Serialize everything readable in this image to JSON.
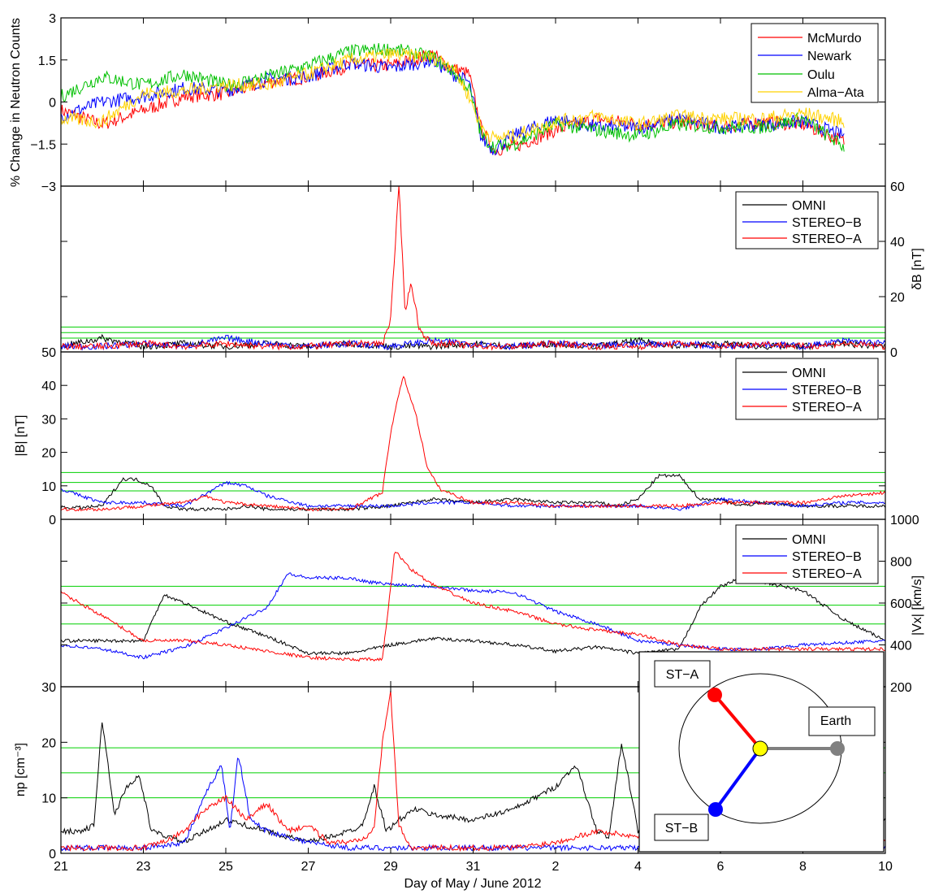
{
  "figure": {
    "xlabel": "Day of May / June 2012",
    "x_tick_labels": [
      "21",
      "23",
      "25",
      "27",
      "29",
      "31",
      "2",
      "4",
      "6",
      "8",
      "10"
    ],
    "xlim": [
      21,
      41
    ]
  },
  "chart_data": [
    {
      "type": "line",
      "ylabel": "% Change in Neutron Counts",
      "ylim": [
        -3,
        3
      ],
      "y_tick_labels": [
        "3",
        "1.5",
        "0",
        "−1.5",
        "−3"
      ],
      "legend_position": "top-right",
      "series": [
        {
          "name": "McMurdo",
          "color": "#ff0000",
          "x": [
            21,
            22,
            23,
            24,
            25,
            26,
            27,
            28,
            29,
            30,
            30.5,
            30.9,
            31.2,
            31.5,
            32,
            33,
            34,
            35,
            36,
            37,
            38,
            39,
            40
          ],
          "y": [
            -0.3,
            -0.8,
            -0.3,
            0.2,
            0.3,
            0.7,
            0.9,
            1.3,
            1.3,
            1.7,
            1.2,
            1.0,
            -1.0,
            -1.7,
            -1.6,
            -1.0,
            -0.6,
            -0.8,
            -0.7,
            -0.9,
            -0.7,
            -0.8,
            -1.4
          ]
        },
        {
          "name": "Newark",
          "color": "#0000ff",
          "x": [
            21,
            22,
            23,
            24,
            25,
            26,
            27,
            28,
            29,
            30,
            30.5,
            30.9,
            31.2,
            31.5,
            32,
            33,
            34,
            35,
            36,
            37,
            38,
            39,
            40
          ],
          "y": [
            -0.5,
            0.0,
            0.2,
            0.5,
            0.4,
            0.8,
            0.9,
            1.4,
            1.2,
            1.5,
            1.0,
            0.7,
            -1.3,
            -1.7,
            -1.2,
            -0.6,
            -0.9,
            -0.9,
            -0.6,
            -0.9,
            -0.8,
            -0.7,
            -1.2
          ]
        },
        {
          "name": "Oulu",
          "color": "#00c000",
          "x": [
            21,
            22,
            23,
            24,
            25,
            26,
            27,
            28,
            29,
            30,
            30.5,
            30.9,
            31.2,
            31.5,
            32,
            33,
            34,
            35,
            36,
            37,
            38,
            39,
            40
          ],
          "y": [
            0.2,
            0.9,
            0.6,
            1.0,
            0.6,
            0.9,
            1.3,
            1.8,
            1.9,
            1.6,
            1.1,
            0.5,
            -1.2,
            -1.6,
            -1.5,
            -0.8,
            -1.0,
            -1.2,
            -0.8,
            -0.9,
            -0.9,
            -0.6,
            -1.6
          ]
        },
        {
          "name": "Alma−Ata",
          "color": "#ffd200",
          "x": [
            21,
            22,
            23,
            24,
            25,
            26,
            27,
            28,
            29,
            30,
            30.5,
            30.9,
            31.2,
            31.5,
            32,
            33,
            34,
            35,
            36,
            37,
            38,
            39,
            40
          ],
          "y": [
            -0.6,
            -0.7,
            0.3,
            0.4,
            0.6,
            0.6,
            1.0,
            1.5,
            1.7,
            1.6,
            1.3,
            0.2,
            -0.9,
            -1.3,
            -1.2,
            -0.7,
            -0.5,
            -0.8,
            -0.5,
            -0.6,
            -0.6,
            -0.4,
            -0.7
          ]
        }
      ]
    },
    {
      "type": "line",
      "ylabel": "δB [nT]",
      "ylim": [
        0,
        60
      ],
      "y_tick_labels": [
        "60",
        "40",
        "20",
        "0"
      ],
      "y_axis_side": "right",
      "threshold_lines": [
        5,
        7,
        9
      ],
      "legend_position": "top-right",
      "series": [
        {
          "name": "OMNI",
          "color": "#000000",
          "x": [
            21,
            22,
            23,
            24,
            25,
            26,
            27,
            28,
            29,
            30,
            31,
            32,
            33,
            34,
            35,
            36,
            37,
            38,
            39,
            40,
            41
          ],
          "y": [
            2,
            5,
            2,
            3,
            2,
            3,
            2,
            3,
            2,
            2,
            3,
            2,
            3,
            2,
            4,
            2,
            3,
            2,
            2,
            3,
            2
          ]
        },
        {
          "name": "STEREO−B",
          "color": "#0000ff",
          "x": [
            21,
            22,
            23,
            24,
            25,
            26,
            27,
            28,
            29,
            30,
            31,
            32,
            33,
            34,
            35,
            36,
            37,
            38,
            39,
            40,
            41
          ],
          "y": [
            2,
            2,
            3,
            2,
            5,
            3,
            2,
            3,
            2,
            4,
            3,
            2,
            3,
            2,
            3,
            3,
            2,
            3,
            2,
            4,
            3
          ]
        },
        {
          "name": "STEREO−A",
          "color": "#ff0000",
          "x": [
            21,
            22,
            23,
            24,
            25,
            26,
            27,
            28,
            28.8,
            29.0,
            29.2,
            29.35,
            29.5,
            29.7,
            30,
            30.5,
            31,
            32,
            33,
            34,
            35,
            36,
            37,
            38,
            39,
            40,
            41
          ],
          "y": [
            2,
            2,
            3,
            2,
            3,
            2,
            2,
            3,
            3,
            12,
            60,
            15,
            25,
            8,
            3,
            3,
            2,
            2,
            3,
            2,
            2,
            3,
            2,
            3,
            2,
            3,
            2
          ]
        }
      ]
    },
    {
      "type": "line",
      "ylabel": "|B| [nT]",
      "ylim": [
        0,
        50
      ],
      "y_tick_labels": [
        "50",
        "40",
        "30",
        "20",
        "10",
        "0"
      ],
      "threshold_lines": [
        8.5,
        11,
        14
      ],
      "legend_position": "top-right",
      "series": [
        {
          "name": "OMNI",
          "color": "#000000",
          "x": [
            21,
            21.5,
            22,
            22.5,
            22.8,
            23.2,
            23.5,
            24,
            25,
            25.5,
            26,
            27,
            28,
            29,
            30,
            31,
            32,
            33,
            34,
            34.5,
            35,
            35.5,
            36,
            36.5,
            37,
            37.5,
            38,
            39,
            40,
            41
          ],
          "y": [
            3.5,
            3.5,
            4,
            12,
            12,
            10,
            4,
            3,
            3,
            4,
            3,
            3,
            3,
            4,
            6,
            5,
            6,
            5,
            5,
            4,
            6,
            13,
            13,
            6,
            6,
            4,
            5,
            4,
            4,
            4
          ]
        },
        {
          "name": "STEREO−B",
          "color": "#0000ff",
          "x": [
            21,
            22,
            23,
            24,
            25,
            25.5,
            26,
            27,
            28,
            29,
            30,
            31,
            32,
            33,
            34,
            35,
            36,
            37,
            38,
            39,
            40,
            41
          ],
          "y": [
            9,
            5,
            5,
            4,
            11,
            10,
            7,
            4,
            4,
            4,
            5,
            5,
            4,
            4,
            4,
            4,
            3,
            6,
            5,
            4,
            5,
            5
          ]
        },
        {
          "name": "STEREO−A",
          "color": "#ff0000",
          "x": [
            21,
            22,
            23,
            24,
            24.5,
            25,
            26,
            27,
            28,
            28.8,
            29.0,
            29.3,
            29.6,
            29.9,
            30.2,
            30.6,
            31,
            32,
            33,
            34,
            35,
            36,
            37,
            38,
            39,
            40,
            41
          ],
          "y": [
            3,
            3,
            4,
            5,
            7,
            5,
            4,
            3,
            3,
            8,
            26,
            43,
            32,
            15,
            9,
            7,
            5,
            5,
            4,
            4,
            4,
            4,
            5,
            5,
            5,
            7,
            8
          ]
        }
      ]
    },
    {
      "type": "line",
      "ylabel": "|Vx| [km/s]",
      "ylim": [
        200,
        1000
      ],
      "y_tick_labels": [
        "1000",
        "800",
        "600",
        "400",
        "200"
      ],
      "y_axis_side": "right",
      "threshold_lines": [
        500,
        590,
        680
      ],
      "legend_position": "top-right",
      "series": [
        {
          "name": "OMNI",
          "color": "#000000",
          "x": [
            21,
            22,
            23,
            23.5,
            24,
            25,
            26,
            27,
            28,
            29,
            30,
            31,
            32,
            33,
            34,
            35,
            36,
            36.5,
            37,
            37.5,
            38,
            39,
            40,
            41
          ],
          "y": [
            420,
            420,
            420,
            640,
            600,
            510,
            440,
            360,
            360,
            400,
            430,
            420,
            400,
            370,
            390,
            360,
            380,
            580,
            680,
            720,
            700,
            660,
            520,
            420
          ]
        },
        {
          "name": "STEREO−B",
          "color": "#0000ff",
          "x": [
            21,
            22,
            23,
            24,
            25,
            26,
            26.5,
            27,
            28,
            28.5,
            29,
            30,
            31,
            32,
            33,
            34,
            35,
            36,
            37,
            38,
            39,
            40,
            41
          ],
          "y": [
            400,
            380,
            340,
            390,
            480,
            580,
            740,
            720,
            720,
            700,
            690,
            680,
            660,
            650,
            560,
            500,
            420,
            400,
            380,
            380,
            400,
            410,
            420
          ]
        },
        {
          "name": "STEREO−A",
          "color": "#ff0000",
          "x": [
            21,
            22,
            23,
            24,
            25,
            26,
            27,
            28,
            28.8,
            29.1,
            29.5,
            30,
            31,
            32,
            33,
            34,
            35,
            36,
            37,
            38,
            39,
            40,
            41
          ],
          "y": [
            650,
            540,
            420,
            420,
            400,
            370,
            340,
            330,
            330,
            850,
            760,
            690,
            600,
            560,
            500,
            470,
            450,
            400,
            380,
            380,
            380,
            380,
            380
          ]
        }
      ]
    },
    {
      "type": "line",
      "ylabel": "np [cm⁻³]",
      "ylim": [
        0,
        30
      ],
      "y_tick_labels": [
        "30",
        "20",
        "10",
        "0"
      ],
      "threshold_lines": [
        10,
        14.5,
        19
      ],
      "legend_position": "none",
      "series": [
        {
          "name": "OMNI",
          "color": "#000000",
          "x": [
            21,
            21.5,
            21.8,
            22,
            22.3,
            22.6,
            22.9,
            23.2,
            23.6,
            24,
            25,
            26,
            27,
            28,
            28.3,
            28.6,
            28.9,
            29.2,
            29.6,
            30,
            31,
            32,
            33,
            33.5,
            34,
            34.3,
            34.6,
            35,
            35.5,
            35.8,
            36,
            36.3,
            36.6,
            37,
            38,
            39,
            40,
            41
          ],
          "y": [
            4,
            4,
            5,
            24,
            7,
            12,
            14,
            4,
            3,
            2,
            6,
            4,
            2,
            4,
            5,
            12,
            4,
            6,
            8,
            7,
            6,
            8,
            12,
            16,
            4,
            3,
            20,
            4,
            3,
            18,
            20,
            4,
            5,
            4,
            5,
            6,
            6,
            6
          ]
        },
        {
          "name": "STEREO−B",
          "color": "#0000ff",
          "x": [
            21,
            22,
            23,
            24,
            24.6,
            24.9,
            25.1,
            25.3,
            25.6,
            26,
            27,
            28,
            29,
            30,
            31,
            32,
            33,
            34,
            35,
            36,
            37,
            38,
            39,
            40,
            41
          ],
          "y": [
            1,
            1,
            1,
            2,
            12,
            16,
            4,
            18,
            6,
            4,
            2,
            1,
            1,
            1,
            1,
            1,
            1,
            1,
            1,
            2,
            1,
            1,
            1,
            1,
            1
          ]
        },
        {
          "name": "STEREO−A",
          "color": "#ff0000",
          "x": [
            21,
            22,
            23,
            23.5,
            24,
            24.5,
            25,
            25.5,
            26,
            26.5,
            27,
            27.5,
            28,
            28.4,
            28.6,
            28.8,
            29.0,
            29.2,
            29.5,
            30,
            31,
            32,
            33,
            34,
            35,
            36,
            37,
            38,
            39,
            40,
            41
          ],
          "y": [
            1,
            1,
            1,
            2,
            4,
            8,
            10,
            6,
            9,
            4,
            5,
            2,
            2,
            3,
            5,
            20,
            29,
            5,
            1,
            1,
            1,
            1,
            2,
            4,
            3,
            2,
            2,
            2,
            2,
            2,
            2
          ]
        }
      ]
    }
  ],
  "legends": {
    "neutron": [
      "McMurdo",
      "Newark",
      "Oulu",
      "Alma−Ata"
    ],
    "spacecraft": [
      "OMNI",
      "STEREO−B",
      "STEREO−A"
    ]
  },
  "inset": {
    "labels": {
      "st_a": "ST−A",
      "st_b": "ST−B",
      "earth": "Earth"
    },
    "colors": {
      "st_a": "#ff0000",
      "st_b": "#0000ff",
      "sun": "#ffff00",
      "earth": "#808080"
    }
  }
}
